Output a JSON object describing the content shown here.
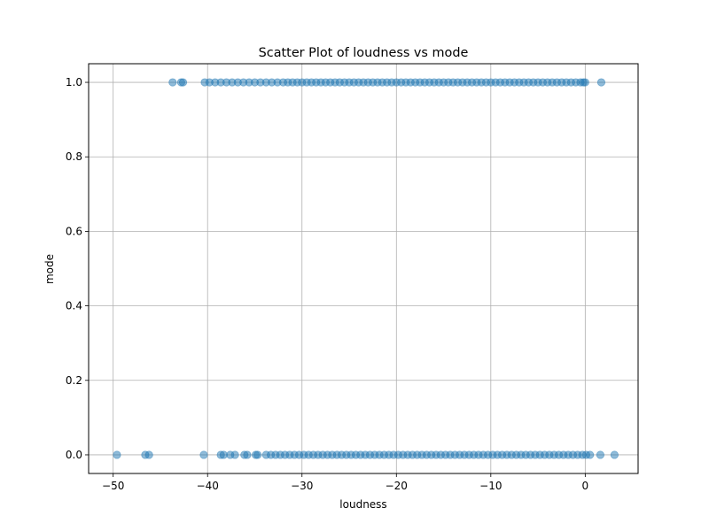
{
  "chart_data": {
    "type": "scatter",
    "title": "Scatter Plot of loudness vs mode",
    "xlabel": "loudness",
    "ylabel": "mode",
    "xlim": [
      -52.6,
      5.6
    ],
    "ylim": [
      -0.05,
      1.05
    ],
    "xticks": [
      -50,
      -40,
      -30,
      -20,
      -10,
      0
    ],
    "xtick_labels": [
      "−50",
      "−40",
      "−30",
      "−20",
      "−10",
      "0"
    ],
    "yticks": [
      0.0,
      0.2,
      0.4,
      0.6,
      0.8,
      1.0
    ],
    "ytick_labels": [
      "0.0",
      "0.2",
      "0.4",
      "0.6",
      "0.8",
      "1.0"
    ],
    "grid": true,
    "point_color": "#1f77b4",
    "point_alpha": 0.5,
    "series": [
      {
        "mode": 1,
        "x": [
          -43.7,
          -42.8,
          -42.6,
          -40.3,
          -39.8,
          -39.2,
          -38.6,
          -38.0,
          -37.4,
          -36.8,
          -36.2,
          -35.6,
          -35.0,
          -34.4,
          -33.8,
          -33.2,
          -32.6,
          -32.0,
          -31.5,
          -31.0,
          -30.5,
          -30.0,
          -29.5,
          -29.0,
          -28.5,
          -28.0,
          -27.5,
          -27.0,
          -26.5,
          -26.0,
          -25.5,
          -25.0,
          -24.5,
          -24.0,
          -23.5,
          -23.0,
          -22.5,
          -22.0,
          -21.5,
          -21.0,
          -20.5,
          -20.0,
          -19.5,
          -19.0,
          -18.5,
          -18.0,
          -17.5,
          -17.0,
          -16.5,
          -16.0,
          -15.5,
          -15.0,
          -14.5,
          -14.0,
          -13.5,
          -13.0,
          -12.5,
          -12.0,
          -11.5,
          -11.0,
          -10.5,
          -10.0,
          -9.5,
          -9.0,
          -8.5,
          -8.0,
          -7.5,
          -7.0,
          -6.5,
          -6.0,
          -5.5,
          -5.0,
          -4.5,
          -4.0,
          -3.5,
          -3.0,
          -2.5,
          -2.0,
          -1.5,
          -1.0,
          -0.5,
          -0.2,
          0.0,
          1.7
        ]
      },
      {
        "mode": 0,
        "x": [
          -49.6,
          -46.6,
          -46.2,
          -40.4,
          -38.6,
          -38.3,
          -37.6,
          -37.1,
          -36.1,
          -35.8,
          -34.9,
          -34.7,
          -33.8,
          -33.3,
          -32.8,
          -32.3,
          -31.8,
          -31.3,
          -30.8,
          -30.3,
          -29.8,
          -29.3,
          -28.8,
          -28.3,
          -27.8,
          -27.3,
          -26.8,
          -26.3,
          -25.8,
          -25.3,
          -24.8,
          -24.3,
          -23.8,
          -23.3,
          -22.8,
          -22.3,
          -21.8,
          -21.3,
          -20.8,
          -20.3,
          -19.8,
          -19.3,
          -18.8,
          -18.3,
          -17.8,
          -17.3,
          -16.8,
          -16.3,
          -15.8,
          -15.3,
          -14.8,
          -14.3,
          -13.8,
          -13.3,
          -12.8,
          -12.3,
          -11.8,
          -11.3,
          -10.8,
          -10.3,
          -9.8,
          -9.3,
          -8.8,
          -8.3,
          -7.8,
          -7.3,
          -6.8,
          -6.3,
          -5.8,
          -5.3,
          -4.8,
          -4.3,
          -3.8,
          -3.3,
          -2.8,
          -2.3,
          -1.8,
          -1.3,
          -0.8,
          -0.3,
          0.1,
          0.5,
          1.6,
          3.1
        ]
      }
    ]
  }
}
